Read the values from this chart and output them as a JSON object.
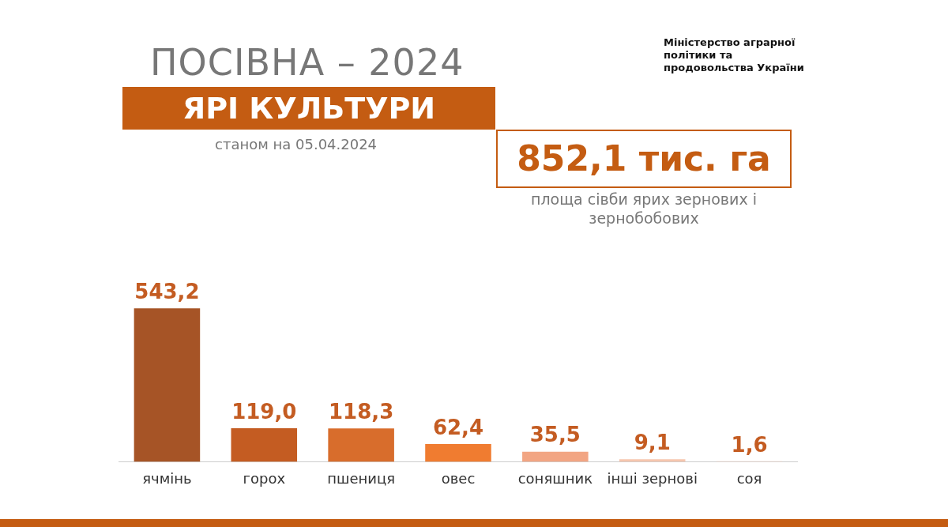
{
  "chart_data": {
    "type": "bar",
    "title": "ПОСІВНА – 2024",
    "subtitle": "ЯРІ КУЛЬТУРИ",
    "annotations": [
      "станом на 05.04.2024",
      "852,1 тис. га",
      "площа сівби ярих зернових і зернобобових",
      "Міністерство аграрної політики та продовольства України"
    ],
    "categories": [
      "ячмінь",
      "горох",
      "пшениця",
      "овес",
      "соняшник",
      "інші зернові",
      "соя"
    ],
    "values": [
      543.2,
      119.0,
      118.3,
      62.4,
      35.5,
      9.1,
      1.6
    ],
    "colors": [
      "#a65426",
      "#c45c22",
      "#d86d2c",
      "#f07c30",
      "#f2a583",
      "#f6c6ae",
      "#f8d8c8"
    ],
    "value_labels": [
      "543,2",
      "119,0",
      "118,3",
      "62,4",
      "35,5",
      "9,1",
      "1,6"
    ],
    "grid": false,
    "legend": false
  }
}
